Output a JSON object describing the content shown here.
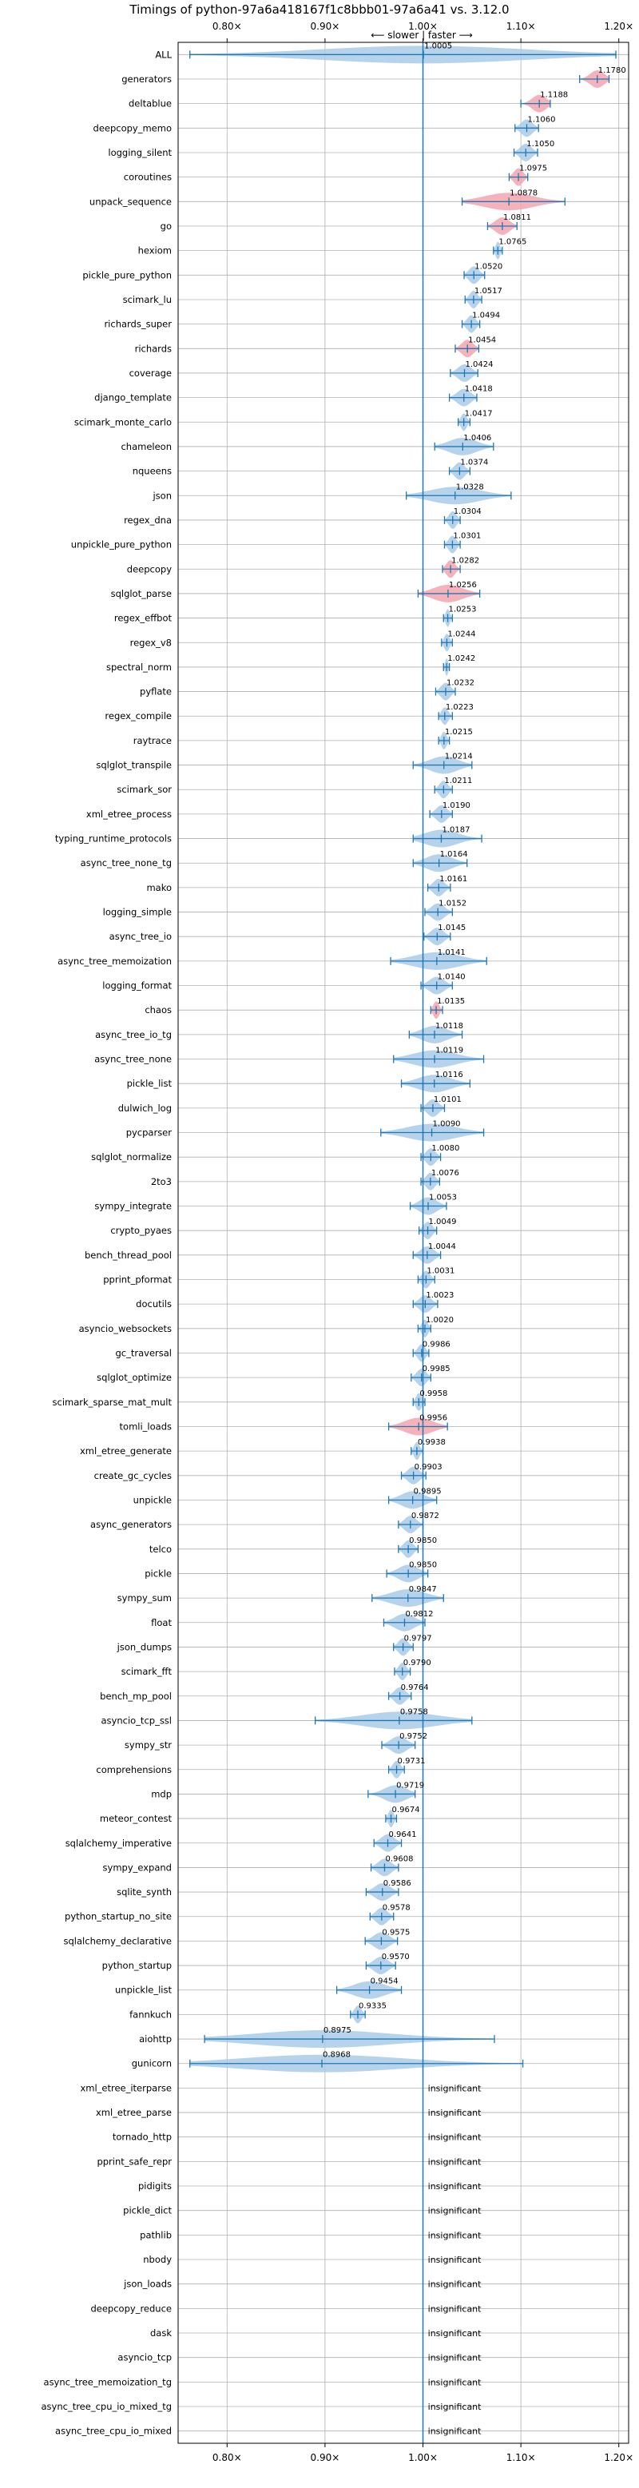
{
  "chart_data": {
    "type": "violin",
    "title": "Timings of python-97a6a418167f1c8bbb01-97a6a41 vs. 3.12.0",
    "direction_label": "⟵ slower | faster ⟶",
    "xlim": [
      0.75,
      1.21
    ],
    "x_ticks": [
      {
        "value": 0.8,
        "label": "0.80×"
      },
      {
        "value": 0.9,
        "label": "0.90×"
      },
      {
        "value": 1.0,
        "label": "1.00×"
      },
      {
        "value": 1.1,
        "label": "1.10×"
      },
      {
        "value": 1.2,
        "label": "1.20×"
      }
    ],
    "grid": true,
    "insignificant_label": "insignificant",
    "colors": {
      "neutral": "#a9cbe8",
      "significant": "#f4a5ae",
      "stroke": "#1f77b4",
      "reference": "#1f77b4"
    },
    "benchmarks": [
      {
        "name": "ALL",
        "value": 1.0005,
        "label": "1.0005",
        "min": 0.762,
        "max": 1.197,
        "color": "neutral"
      },
      {
        "name": "generators",
        "value": 1.178,
        "label": "1.1780",
        "min": 1.16,
        "max": 1.19,
        "color": "significant"
      },
      {
        "name": "deltablue",
        "value": 1.1188,
        "label": "1.1188",
        "min": 1.1,
        "max": 1.13,
        "color": "significant"
      },
      {
        "name": "deepcopy_memo",
        "value": 1.106,
        "label": "1.1060",
        "min": 1.094,
        "max": 1.118,
        "color": "neutral"
      },
      {
        "name": "logging_silent",
        "value": 1.105,
        "label": "1.1050",
        "min": 1.093,
        "max": 1.117,
        "color": "neutral"
      },
      {
        "name": "coroutines",
        "value": 1.0975,
        "label": "1.0975",
        "min": 1.088,
        "max": 1.107,
        "color": "significant"
      },
      {
        "name": "unpack_sequence",
        "value": 1.0878,
        "label": "1.0878",
        "min": 1.04,
        "max": 1.145,
        "color": "significant"
      },
      {
        "name": "go",
        "value": 1.0811,
        "label": "1.0811",
        "min": 1.066,
        "max": 1.096,
        "color": "significant"
      },
      {
        "name": "hexiom",
        "value": 1.0765,
        "label": "1.0765",
        "min": 1.072,
        "max": 1.081,
        "color": "neutral"
      },
      {
        "name": "pickle_pure_python",
        "value": 1.052,
        "label": "1.0520",
        "min": 1.042,
        "max": 1.063,
        "color": "neutral"
      },
      {
        "name": "scimark_lu",
        "value": 1.0517,
        "label": "1.0517",
        "min": 1.043,
        "max": 1.06,
        "color": "neutral"
      },
      {
        "name": "richards_super",
        "value": 1.0494,
        "label": "1.0494",
        "min": 1.04,
        "max": 1.058,
        "color": "neutral"
      },
      {
        "name": "richards",
        "value": 1.0454,
        "label": "1.0454",
        "min": 1.033,
        "max": 1.057,
        "color": "significant"
      },
      {
        "name": "coverage",
        "value": 1.0424,
        "label": "1.0424",
        "min": 1.028,
        "max": 1.056,
        "color": "neutral"
      },
      {
        "name": "django_template",
        "value": 1.0418,
        "label": "1.0418",
        "min": 1.027,
        "max": 1.055,
        "color": "neutral"
      },
      {
        "name": "scimark_monte_carlo",
        "value": 1.0417,
        "label": "1.0417",
        "min": 1.036,
        "max": 1.048,
        "color": "neutral"
      },
      {
        "name": "chameleon",
        "value": 1.0406,
        "label": "1.0406",
        "min": 1.012,
        "max": 1.072,
        "color": "neutral"
      },
      {
        "name": "nqueens",
        "value": 1.0374,
        "label": "1.0374",
        "min": 1.027,
        "max": 1.048,
        "color": "neutral"
      },
      {
        "name": "json",
        "value": 1.0328,
        "label": "1.0328",
        "min": 0.983,
        "max": 1.09,
        "color": "neutral"
      },
      {
        "name": "regex_dna",
        "value": 1.0304,
        "label": "1.0304",
        "min": 1.022,
        "max": 1.038,
        "color": "neutral"
      },
      {
        "name": "unpickle_pure_python",
        "value": 1.0301,
        "label": "1.0301",
        "min": 1.022,
        "max": 1.038,
        "color": "neutral"
      },
      {
        "name": "deepcopy",
        "value": 1.0282,
        "label": "1.0282",
        "min": 1.02,
        "max": 1.038,
        "color": "significant"
      },
      {
        "name": "sqlglot_parse",
        "value": 1.0256,
        "label": "1.0256",
        "min": 0.995,
        "max": 1.058,
        "color": "significant"
      },
      {
        "name": "regex_effbot",
        "value": 1.0253,
        "label": "1.0253",
        "min": 1.021,
        "max": 1.03,
        "color": "neutral"
      },
      {
        "name": "regex_v8",
        "value": 1.0244,
        "label": "1.0244",
        "min": 1.019,
        "max": 1.03,
        "color": "neutral"
      },
      {
        "name": "spectral_norm",
        "value": 1.0242,
        "label": "1.0242",
        "min": 1.021,
        "max": 1.027,
        "color": "neutral"
      },
      {
        "name": "pyflate",
        "value": 1.0232,
        "label": "1.0232",
        "min": 1.013,
        "max": 1.033,
        "color": "neutral"
      },
      {
        "name": "regex_compile",
        "value": 1.0223,
        "label": "1.0223",
        "min": 1.016,
        "max": 1.03,
        "color": "neutral"
      },
      {
        "name": "raytrace",
        "value": 1.0215,
        "label": "1.0215",
        "min": 1.016,
        "max": 1.027,
        "color": "neutral"
      },
      {
        "name": "sqlglot_transpile",
        "value": 1.0214,
        "label": "1.0214",
        "min": 0.99,
        "max": 1.05,
        "color": "neutral"
      },
      {
        "name": "scimark_sor",
        "value": 1.0211,
        "label": "1.0211",
        "min": 1.012,
        "max": 1.03,
        "color": "neutral"
      },
      {
        "name": "xml_etree_process",
        "value": 1.019,
        "label": "1.0190",
        "min": 1.007,
        "max": 1.03,
        "color": "neutral"
      },
      {
        "name": "typing_runtime_protocols",
        "value": 1.0187,
        "label": "1.0187",
        "min": 0.99,
        "max": 1.06,
        "color": "neutral"
      },
      {
        "name": "async_tree_none_tg",
        "value": 1.0164,
        "label": "1.0164",
        "min": 0.99,
        "max": 1.045,
        "color": "neutral"
      },
      {
        "name": "mako",
        "value": 1.0161,
        "label": "1.0161",
        "min": 1.005,
        "max": 1.028,
        "color": "neutral"
      },
      {
        "name": "logging_simple",
        "value": 1.0152,
        "label": "1.0152",
        "min": 1.002,
        "max": 1.03,
        "color": "neutral"
      },
      {
        "name": "async_tree_io",
        "value": 1.0145,
        "label": "1.0145",
        "min": 1.001,
        "max": 1.028,
        "color": "neutral"
      },
      {
        "name": "async_tree_memoization",
        "value": 1.0141,
        "label": "1.0141",
        "min": 0.967,
        "max": 1.065,
        "color": "neutral"
      },
      {
        "name": "logging_format",
        "value": 1.014,
        "label": "1.0140",
        "min": 0.998,
        "max": 1.03,
        "color": "neutral"
      },
      {
        "name": "chaos",
        "value": 1.0135,
        "label": "1.0135",
        "min": 1.008,
        "max": 1.02,
        "color": "significant"
      },
      {
        "name": "async_tree_io_tg",
        "value": 1.0118,
        "label": "1.0118",
        "min": 0.986,
        "max": 1.04,
        "color": "neutral"
      },
      {
        "name": "async_tree_none",
        "value": 1.0119,
        "label": "1.0119",
        "min": 0.97,
        "max": 1.062,
        "color": "neutral"
      },
      {
        "name": "pickle_list",
        "value": 1.0116,
        "label": "1.0116",
        "min": 0.978,
        "max": 1.048,
        "color": "neutral"
      },
      {
        "name": "dulwich_log",
        "value": 1.0101,
        "label": "1.0101",
        "min": 0.998,
        "max": 1.022,
        "color": "neutral"
      },
      {
        "name": "pycparser",
        "value": 1.009,
        "label": "1.0090",
        "min": 0.957,
        "max": 1.062,
        "color": "neutral"
      },
      {
        "name": "sqlglot_normalize",
        "value": 1.008,
        "label": "1.0080",
        "min": 0.998,
        "max": 1.018,
        "color": "neutral"
      },
      {
        "name": "2to3",
        "value": 1.0076,
        "label": "1.0076",
        "min": 0.998,
        "max": 1.017,
        "color": "neutral"
      },
      {
        "name": "sympy_integrate",
        "value": 1.0053,
        "label": "1.0053",
        "min": 0.987,
        "max": 1.024,
        "color": "neutral"
      },
      {
        "name": "crypto_pyaes",
        "value": 1.0049,
        "label": "1.0049",
        "min": 0.996,
        "max": 1.014,
        "color": "neutral"
      },
      {
        "name": "bench_thread_pool",
        "value": 1.0044,
        "label": "1.0044",
        "min": 0.99,
        "max": 1.018,
        "color": "neutral"
      },
      {
        "name": "pprint_pformat",
        "value": 1.0031,
        "label": "1.0031",
        "min": 0.995,
        "max": 1.012,
        "color": "neutral"
      },
      {
        "name": "docutils",
        "value": 1.0023,
        "label": "1.0023",
        "min": 0.99,
        "max": 1.015,
        "color": "neutral"
      },
      {
        "name": "asyncio_websockets",
        "value": 1.002,
        "label": "1.0020",
        "min": 0.995,
        "max": 1.008,
        "color": "neutral"
      },
      {
        "name": "gc_traversal",
        "value": 0.9986,
        "label": "0.9986",
        "min": 0.99,
        "max": 1.006,
        "color": "neutral"
      },
      {
        "name": "sqlglot_optimize",
        "value": 0.9985,
        "label": "0.9985",
        "min": 0.988,
        "max": 1.008,
        "color": "neutral"
      },
      {
        "name": "scimark_sparse_mat_mult",
        "value": 0.9958,
        "label": "0.9958",
        "min": 0.99,
        "max": 1.002,
        "color": "neutral"
      },
      {
        "name": "tomli_loads",
        "value": 0.9956,
        "label": "0.9956",
        "min": 0.965,
        "max": 1.025,
        "color": "significant"
      },
      {
        "name": "xml_etree_generate",
        "value": 0.9938,
        "label": "0.9938",
        "min": 0.988,
        "max": 1.0,
        "color": "neutral"
      },
      {
        "name": "create_gc_cycles",
        "value": 0.9903,
        "label": "0.9903",
        "min": 0.978,
        "max": 1.003,
        "color": "neutral"
      },
      {
        "name": "unpickle",
        "value": 0.9895,
        "label": "0.9895",
        "min": 0.965,
        "max": 1.014,
        "color": "neutral"
      },
      {
        "name": "async_generators",
        "value": 0.9872,
        "label": "0.9872",
        "min": 0.975,
        "max": 1.0,
        "color": "neutral"
      },
      {
        "name": "telco",
        "value": 0.985,
        "label": "0.9850",
        "min": 0.975,
        "max": 0.995,
        "color": "neutral"
      },
      {
        "name": "pickle",
        "value": 0.985,
        "label": "0.9850",
        "min": 0.963,
        "max": 1.005,
        "color": "neutral"
      },
      {
        "name": "sympy_sum",
        "value": 0.9847,
        "label": "0.9847",
        "min": 0.948,
        "max": 1.021,
        "color": "neutral"
      },
      {
        "name": "float",
        "value": 0.9812,
        "label": "0.9812",
        "min": 0.96,
        "max": 1.002,
        "color": "neutral"
      },
      {
        "name": "json_dumps",
        "value": 0.9797,
        "label": "0.9797",
        "min": 0.97,
        "max": 0.99,
        "color": "neutral"
      },
      {
        "name": "scimark_fft",
        "value": 0.979,
        "label": "0.9790",
        "min": 0.971,
        "max": 0.987,
        "color": "neutral"
      },
      {
        "name": "bench_mp_pool",
        "value": 0.9764,
        "label": "0.9764",
        "min": 0.965,
        "max": 0.988,
        "color": "neutral"
      },
      {
        "name": "asyncio_tcp_ssl",
        "value": 0.9758,
        "label": "0.9758",
        "min": 0.89,
        "max": 1.05,
        "color": "neutral"
      },
      {
        "name": "sympy_str",
        "value": 0.9752,
        "label": "0.9752",
        "min": 0.958,
        "max": 0.992,
        "color": "neutral"
      },
      {
        "name": "comprehensions",
        "value": 0.9731,
        "label": "0.9731",
        "min": 0.965,
        "max": 0.981,
        "color": "neutral"
      },
      {
        "name": "mdp",
        "value": 0.9719,
        "label": "0.9719",
        "min": 0.944,
        "max": 0.992,
        "color": "neutral"
      },
      {
        "name": "meteor_contest",
        "value": 0.9674,
        "label": "0.9674",
        "min": 0.962,
        "max": 0.973,
        "color": "neutral"
      },
      {
        "name": "sqlalchemy_imperative",
        "value": 0.9641,
        "label": "0.9641",
        "min": 0.95,
        "max": 0.978,
        "color": "neutral"
      },
      {
        "name": "sympy_expand",
        "value": 0.9608,
        "label": "0.9608",
        "min": 0.947,
        "max": 0.975,
        "color": "neutral"
      },
      {
        "name": "sqlite_synth",
        "value": 0.9586,
        "label": "0.9586",
        "min": 0.942,
        "max": 0.975,
        "color": "neutral"
      },
      {
        "name": "python_startup_no_site",
        "value": 0.9578,
        "label": "0.9578",
        "min": 0.946,
        "max": 0.97,
        "color": "neutral"
      },
      {
        "name": "sqlalchemy_declarative",
        "value": 0.9575,
        "label": "0.9575",
        "min": 0.941,
        "max": 0.974,
        "color": "neutral"
      },
      {
        "name": "python_startup",
        "value": 0.957,
        "label": "0.9570",
        "min": 0.942,
        "max": 0.972,
        "color": "neutral"
      },
      {
        "name": "unpickle_list",
        "value": 0.9454,
        "label": "0.9454",
        "min": 0.912,
        "max": 0.978,
        "color": "neutral"
      },
      {
        "name": "fannkuch",
        "value": 0.9335,
        "label": "0.9335",
        "min": 0.926,
        "max": 0.941,
        "color": "neutral"
      },
      {
        "name": "aiohttp",
        "value": 0.8975,
        "label": "0.8975",
        "min": 0.777,
        "max": 1.073,
        "color": "neutral"
      },
      {
        "name": "gunicorn",
        "value": 0.8968,
        "label": "0.8968",
        "min": 0.762,
        "max": 1.102,
        "color": "neutral"
      },
      {
        "name": "xml_etree_iterparse",
        "insignificant": true
      },
      {
        "name": "xml_etree_parse",
        "insignificant": true
      },
      {
        "name": "tornado_http",
        "insignificant": true
      },
      {
        "name": "pprint_safe_repr",
        "insignificant": true
      },
      {
        "name": "pidigits",
        "insignificant": true
      },
      {
        "name": "pickle_dict",
        "insignificant": true
      },
      {
        "name": "pathlib",
        "insignificant": true
      },
      {
        "name": "nbody",
        "insignificant": true
      },
      {
        "name": "json_loads",
        "insignificant": true
      },
      {
        "name": "deepcopy_reduce",
        "insignificant": true
      },
      {
        "name": "dask",
        "insignificant": true
      },
      {
        "name": "asyncio_tcp",
        "insignificant": true
      },
      {
        "name": "async_tree_memoization_tg",
        "insignificant": true
      },
      {
        "name": "async_tree_cpu_io_mixed_tg",
        "insignificant": true
      },
      {
        "name": "async_tree_cpu_io_mixed",
        "insignificant": true
      }
    ]
  }
}
